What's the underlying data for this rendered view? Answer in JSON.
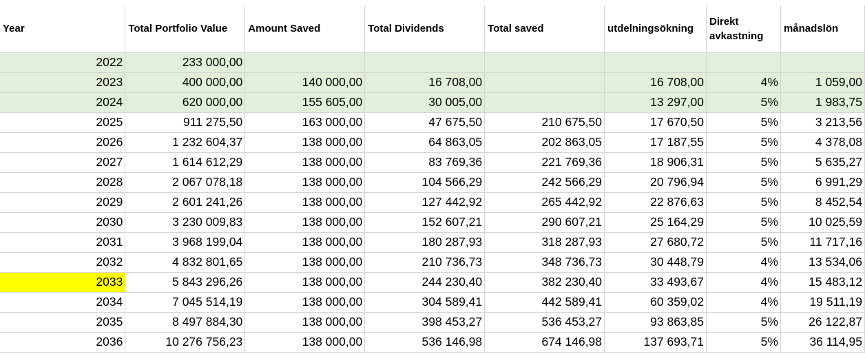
{
  "headers": [
    "Year",
    "Total Portfolio Value",
    "Amount Saved",
    "Total Dividends",
    "Total saved",
    "utdelningsökning",
    "Direkt avkastning",
    "månadslön"
  ],
  "rows": [
    [
      "2022",
      "233 000,00",
      "",
      "",
      "",
      "",
      "",
      ""
    ],
    [
      "2023",
      "400 000,00",
      "140 000,00",
      "16 708,00",
      "",
      "16 708,00",
      "4%",
      "1 059,00"
    ],
    [
      "2024",
      "620 000,00",
      "155 605,00",
      "30 005,00",
      "",
      "13 297,00",
      "5%",
      "1 983,75"
    ],
    [
      "2025",
      "911 275,50",
      "163 000,00",
      "47 675,50",
      "210 675,50",
      "17 670,50",
      "5%",
      "3 213,56"
    ],
    [
      "2026",
      "1 232 604,37",
      "138 000,00",
      "64 863,05",
      "202 863,05",
      "17 187,55",
      "5%",
      "4 378,08"
    ],
    [
      "2027",
      "1 614 612,29",
      "138 000,00",
      "83 769,36",
      "221 769,36",
      "18 906,31",
      "5%",
      "5 635,27"
    ],
    [
      "2028",
      "2 067 078,18",
      "138 000,00",
      "104 566,29",
      "242 566,29",
      "20 796,94",
      "5%",
      "6 991,29"
    ],
    [
      "2029",
      "2 601 241,26",
      "138 000,00",
      "127 442,92",
      "265 442,92",
      "22 876,63",
      "5%",
      "8 452,54"
    ],
    [
      "2030",
      "3 230 009,83",
      "138 000,00",
      "152 607,21",
      "290 607,21",
      "25 164,29",
      "5%",
      "10 025,59"
    ],
    [
      "2031",
      "3 968 199,04",
      "138 000,00",
      "180 287,93",
      "318 287,93",
      "27 680,72",
      "5%",
      "11 717,16"
    ],
    [
      "2032",
      "4 832 801,65",
      "138 000,00",
      "210 736,73",
      "348 736,73",
      "30 448,79",
      "4%",
      "13 534,06"
    ],
    [
      "2033",
      "5 843 296,26",
      "138 000,00",
      "244 230,40",
      "382 230,40",
      "33 493,67",
      "4%",
      "15 483,12"
    ],
    [
      "2034",
      "7 045 514,19",
      "138 000,00",
      "304 589,41",
      "442 589,41",
      "60 359,02",
      "4%",
      "19 511,19"
    ],
    [
      "2035",
      "8 497 884,30",
      "138 000,00",
      "398 453,27",
      "536 453,27",
      "93 863,85",
      "5%",
      "26 122,87"
    ],
    [
      "2036",
      "10 276 756,23",
      "138 000,00",
      "536 146,98",
      "674 146,98",
      "137 693,71",
      "5%",
      "36 114,95"
    ]
  ],
  "colors": {
    "green_fill": "#e2efda",
    "highlight": "#ffff00",
    "grid": "#d4d4d4"
  }
}
